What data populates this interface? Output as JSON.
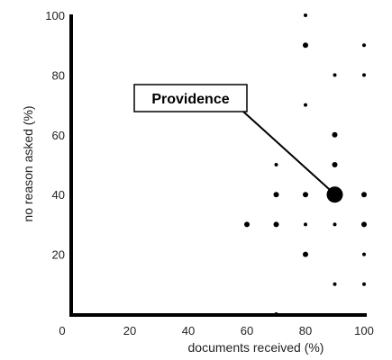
{
  "chart_data": {
    "type": "scatter",
    "title": "",
    "xlabel": "documents received (%)",
    "ylabel": "no reason asked (%)",
    "xlim": [
      0,
      100
    ],
    "ylim": [
      0,
      100
    ],
    "xticks": [
      "0",
      "20",
      "40",
      "60",
      "80",
      "100"
    ],
    "yticks": [
      "20",
      "40",
      "60",
      "80",
      "100"
    ],
    "grid": false,
    "points": [
      {
        "x": 60,
        "y": 30,
        "size": "small"
      },
      {
        "x": 70,
        "y": 0,
        "size": "tiny"
      },
      {
        "x": 70,
        "y": 30,
        "size": "small"
      },
      {
        "x": 70,
        "y": 40,
        "size": "small"
      },
      {
        "x": 70,
        "y": 50,
        "size": "tiny"
      },
      {
        "x": 80,
        "y": 20,
        "size": "small"
      },
      {
        "x": 80,
        "y": 30,
        "size": "tiny"
      },
      {
        "x": 80,
        "y": 40,
        "size": "small"
      },
      {
        "x": 80,
        "y": 70,
        "size": "tiny"
      },
      {
        "x": 80,
        "y": 90,
        "size": "small"
      },
      {
        "x": 80,
        "y": 100,
        "size": "tiny"
      },
      {
        "x": 90,
        "y": 10,
        "size": "tiny"
      },
      {
        "x": 90,
        "y": 30,
        "size": "tiny"
      },
      {
        "x": 90,
        "y": 40,
        "size": "large"
      },
      {
        "x": 90,
        "y": 50,
        "size": "small"
      },
      {
        "x": 90,
        "y": 60,
        "size": "small"
      },
      {
        "x": 90,
        "y": 80,
        "size": "tiny"
      },
      {
        "x": 100,
        "y": 10,
        "size": "tiny"
      },
      {
        "x": 100,
        "y": 20,
        "size": "tiny"
      },
      {
        "x": 100,
        "y": 30,
        "size": "small"
      },
      {
        "x": 100,
        "y": 40,
        "size": "small"
      },
      {
        "x": 100,
        "y": 80,
        "size": "tiny"
      },
      {
        "x": 100,
        "y": 90,
        "size": "tiny"
      }
    ],
    "annotation": {
      "text": "Providence",
      "x": 90,
      "y": 40
    },
    "colors": {
      "points": "#000000",
      "axis": "#000000"
    }
  }
}
